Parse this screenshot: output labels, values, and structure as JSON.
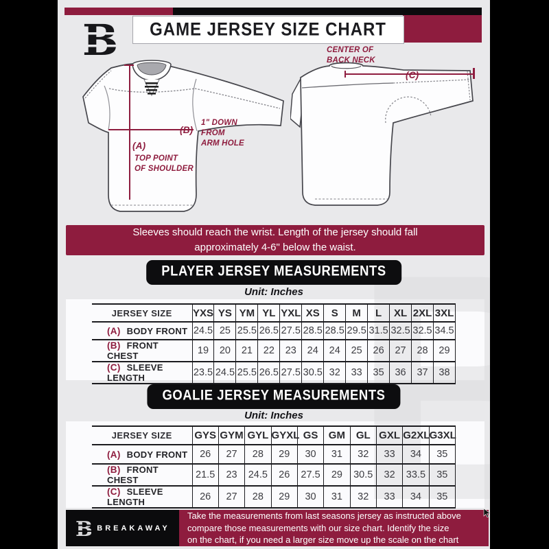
{
  "header": {
    "title": "GAME JERSEY SIZE CHART",
    "logo_letter": "B"
  },
  "diagram": {
    "front": {
      "a_key": "(A)",
      "a_note": "TOP POINT\nOF SHOULDER",
      "b_key": "(B)",
      "b_note": "1\" DOWN\nFROM\nARM HOLE"
    },
    "back": {
      "c_key": "(C)",
      "c_note": "CENTER OF\nBACK NECK"
    }
  },
  "banner": {
    "text": "Sleeves should reach the wrist. Length of the jersey should fall\napproximately 4-6\" below the waist."
  },
  "player_section": {
    "title": "PLAYER JERSEY MEASUREMENTS",
    "unit": "Unit: Inches"
  },
  "goalie_section": {
    "title": "GOALIE JERSEY MEASUREMENTS",
    "unit": "Unit: Inches"
  },
  "player_table": {
    "label_header": "JERSEY SIZE",
    "sizes": [
      "YXS",
      "YS",
      "YM",
      "YL",
      "YXL",
      "XS",
      "S",
      "M",
      "L",
      "XL",
      "2XL",
      "3XL"
    ],
    "rows": [
      {
        "key": "(A)",
        "label": "BODY FRONT",
        "values": [
          24.5,
          25,
          25.5,
          26.5,
          27.5,
          28.5,
          28.5,
          29.5,
          31.5,
          32.5,
          32.5,
          34.5
        ]
      },
      {
        "key": "(B)",
        "label": "FRONT CHEST",
        "values": [
          19,
          20,
          21,
          22,
          23,
          24,
          24,
          25,
          26,
          27,
          28,
          29
        ]
      },
      {
        "key": "(C)",
        "label": "SLEEVE LENGTH",
        "values": [
          23.5,
          24.5,
          25.5,
          26.5,
          27.5,
          30.5,
          32,
          33,
          35,
          36,
          37,
          38
        ]
      }
    ]
  },
  "goalie_table": {
    "label_header": "JERSEY SIZE",
    "sizes": [
      "GYS",
      "GYM",
      "GYL",
      "GYXL",
      "GS",
      "GM",
      "GL",
      "GXL",
      "G2XL",
      "G3XL"
    ],
    "rows": [
      {
        "key": "(A)",
        "label": "BODY FRONT",
        "values": [
          26,
          27,
          28,
          29,
          30,
          31,
          32,
          33,
          34,
          35
        ]
      },
      {
        "key": "(B)",
        "label": "FRONT CHEST",
        "values": [
          21.5,
          23,
          24.5,
          26,
          27.5,
          29,
          30.5,
          32,
          33.5,
          35
        ]
      },
      {
        "key": "(C)",
        "label": "SLEEVE LENGTH",
        "values": [
          26,
          27,
          28,
          29,
          30,
          31,
          32,
          33,
          34,
          35
        ]
      }
    ]
  },
  "footer": {
    "brand": "BREAKAWAY",
    "logo_letter": "B",
    "text": "Take the measurements from last seasons jersey as instructed above\ncompare those measurements  with our size chart. Identify the size\non the chart, if you need a larger size move up the scale on the chart"
  },
  "watermark_letter": "B",
  "colors": {
    "maroon": "#8e1c3e",
    "black": "#0b0b0d",
    "page_bg": "#e9e9eb"
  }
}
